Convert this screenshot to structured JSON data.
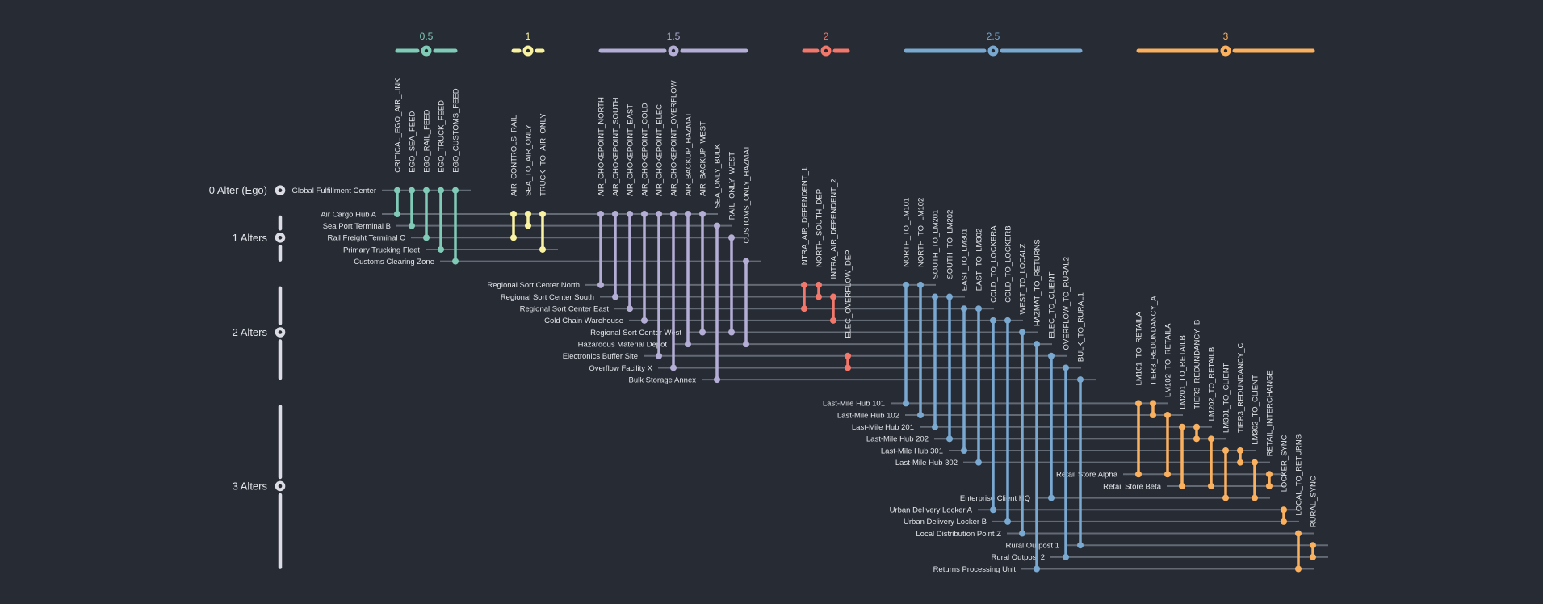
{
  "background": "#262b34",
  "row_line_color": "#646a74",
  "axis_color": "#dcdce4",
  "legend": {
    "items": [
      {
        "label": "0.5",
        "color": "#80cbb7"
      },
      {
        "label": "1",
        "color": "#f9f3a1"
      },
      {
        "label": "1.5",
        "color": "#b4aed6"
      },
      {
        "label": "2",
        "color": "#f3776a"
      },
      {
        "label": "2.5",
        "color": "#79a8d0"
      },
      {
        "label": "3",
        "color": "#fbb05e"
      }
    ]
  },
  "levels": [
    {
      "label": "0 Alter (Ego)",
      "nodes": [
        "Global Fulfillment Center"
      ]
    },
    {
      "label": "1 Alters",
      "nodes": [
        "Air Cargo Hub A",
        "Sea Port Terminal B",
        "Rail Freight Terminal C",
        "Primary Trucking Fleet",
        "Customs Clearing Zone"
      ]
    },
    {
      "label": "2 Alters",
      "nodes": [
        "Regional Sort Center North",
        "Regional Sort Center South",
        "Regional Sort Center East",
        "Cold Chain Warehouse",
        "Regional Sort Center West",
        "Hazardous Material Depot",
        "Electronics Buffer Site",
        "Overflow Facility X",
        "Bulk Storage Annex"
      ]
    },
    {
      "label": "3 Alters",
      "nodes": [
        "Last-Mile Hub 101",
        "Last-Mile Hub 102",
        "Last-Mile Hub 201",
        "Last-Mile Hub 202",
        "Last-Mile Hub 301",
        "Last-Mile Hub 302",
        "Retail Store Alpha",
        "Retail Store Beta",
        "Enterprise Client HQ",
        "Urban Delivery Locker A",
        "Urban Delivery Locker B",
        "Local Distribution Point Z",
        "Rural Outpost 1",
        "Rural Outpost 2",
        "Returns Processing Unit"
      ]
    }
  ],
  "edge_groups": [
    {
      "weight": "0.5",
      "edges": [
        {
          "label": "CRITICAL_EGO_AIR_LINK",
          "from": "Global Fulfillment Center",
          "to": "Air Cargo Hub A"
        },
        {
          "label": "EGO_SEA_FEED",
          "from": "Global Fulfillment Center",
          "to": "Sea Port Terminal B"
        },
        {
          "label": "EGO_RAIL_FEED",
          "from": "Global Fulfillment Center",
          "to": "Rail Freight Terminal C"
        },
        {
          "label": "EGO_TRUCK_FEED",
          "from": "Global Fulfillment Center",
          "to": "Primary Trucking Fleet"
        },
        {
          "label": "EGO_CUSTOMS_FEED",
          "from": "Global Fulfillment Center",
          "to": "Customs Clearing Zone"
        }
      ]
    },
    {
      "weight": "1",
      "edges": [
        {
          "label": "AIR_CONTROLS_RAIL",
          "from": "Air Cargo Hub A",
          "to": "Rail Freight Terminal C"
        },
        {
          "label": "SEA_TO_AIR_ONLY",
          "from": "Air Cargo Hub A",
          "to": "Sea Port Terminal B"
        },
        {
          "label": "TRUCK_TO_AIR_ONLY",
          "from": "Air Cargo Hub A",
          "to": "Primary Trucking Fleet"
        }
      ]
    },
    {
      "weight": "1.5",
      "edges": [
        {
          "label": "AIR_CHOKEPOINT_NORTH",
          "from": "Air Cargo Hub A",
          "to": "Regional Sort Center North"
        },
        {
          "label": "AIR_CHOKEPOINT_SOUTH",
          "from": "Air Cargo Hub A",
          "to": "Regional Sort Center South"
        },
        {
          "label": "AIR_CHOKEPOINT_EAST",
          "from": "Air Cargo Hub A",
          "to": "Regional Sort Center East"
        },
        {
          "label": "AIR_CHOKEPOINT_COLD",
          "from": "Air Cargo Hub A",
          "to": "Cold Chain Warehouse"
        },
        {
          "label": "AIR_CHOKEPOINT_ELEC",
          "from": "Air Cargo Hub A",
          "to": "Electronics Buffer Site"
        },
        {
          "label": "AIR_CHOKEPOINT_OVERFLOW",
          "from": "Air Cargo Hub A",
          "to": "Overflow Facility X"
        },
        {
          "label": "AIR_BACKUP_HAZMAT",
          "from": "Air Cargo Hub A",
          "to": "Hazardous Material Depot"
        },
        {
          "label": "AIR_BACKUP_WEST",
          "from": "Air Cargo Hub A",
          "to": "Regional Sort Center West"
        },
        {
          "label": "SEA_ONLY_BULK",
          "from": "Sea Port Terminal B",
          "to": "Bulk Storage Annex"
        },
        {
          "label": "RAIL_ONLY_WEST",
          "from": "Rail Freight Terminal C",
          "to": "Regional Sort Center West"
        },
        {
          "label": "CUSTOMS_ONLY_HAZMAT",
          "from": "Customs Clearing Zone",
          "to": "Hazardous Material Depot"
        }
      ]
    },
    {
      "weight": "2",
      "edges": [
        {
          "label": "INTRA_AIR_DEPENDENT_1",
          "from": "Regional Sort Center North",
          "to": "Regional Sort Center East"
        },
        {
          "label": "NORTH_SOUTH_DEP",
          "from": "Regional Sort Center North",
          "to": "Regional Sort Center South"
        },
        {
          "label": "INTRA_AIR_DEPENDENT_2",
          "from": "Regional Sort Center South",
          "to": "Cold Chain Warehouse"
        },
        {
          "label": "ELEC_OVERFLOW_DEP",
          "from": "Electronics Buffer Site",
          "to": "Overflow Facility X"
        }
      ]
    },
    {
      "weight": "2.5",
      "edges": [
        {
          "label": "NORTH_TO_LM101",
          "from": "Regional Sort Center North",
          "to": "Last-Mile Hub 101"
        },
        {
          "label": "NORTH_TO_LM102",
          "from": "Regional Sort Center North",
          "to": "Last-Mile Hub 102"
        },
        {
          "label": "SOUTH_TO_LM201",
          "from": "Regional Sort Center South",
          "to": "Last-Mile Hub 201"
        },
        {
          "label": "SOUTH_TO_LM202",
          "from": "Regional Sort Center South",
          "to": "Last-Mile Hub 202"
        },
        {
          "label": "EAST_TO_LM301",
          "from": "Regional Sort Center East",
          "to": "Last-Mile Hub 301"
        },
        {
          "label": "EAST_TO_LM302",
          "from": "Regional Sort Center East",
          "to": "Last-Mile Hub 302"
        },
        {
          "label": "COLD_TO_LOCKERA",
          "from": "Cold Chain Warehouse",
          "to": "Urban Delivery Locker A"
        },
        {
          "label": "COLD_TO_LOCKERB",
          "from": "Cold Chain Warehouse",
          "to": "Urban Delivery Locker B"
        },
        {
          "label": "WEST_TO_LOCALZ",
          "from": "Regional Sort Center West",
          "to": "Local Distribution Point Z"
        },
        {
          "label": "HAZMAT_TO_RETURNS",
          "from": "Hazardous Material Depot",
          "to": "Returns Processing Unit"
        },
        {
          "label": "ELEC_TO_CLIENT",
          "from": "Electronics Buffer Site",
          "to": "Enterprise Client HQ"
        },
        {
          "label": "OVERFLOW_TO_RURAL2",
          "from": "Overflow Facility X",
          "to": "Rural Outpost 2"
        },
        {
          "label": "BULK_TO_RURAL1",
          "from": "Bulk Storage Annex",
          "to": "Rural Outpost 1"
        }
      ]
    },
    {
      "weight": "3",
      "edges": [
        {
          "label": "LM101_TO_RETAILA",
          "from": "Last-Mile Hub 101",
          "to": "Retail Store Alpha"
        },
        {
          "label": "TIER3_REDUNDANCY_A",
          "from": "Last-Mile Hub 101",
          "to": "Last-Mile Hub 102"
        },
        {
          "label": "LM102_TO_RETAILA",
          "from": "Last-Mile Hub 102",
          "to": "Retail Store Alpha"
        },
        {
          "label": "LM201_TO_RETAILB",
          "from": "Last-Mile Hub 201",
          "to": "Retail Store Beta"
        },
        {
          "label": "TIER3_REDUNDANCY_B",
          "from": "Last-Mile Hub 201",
          "to": "Last-Mile Hub 202"
        },
        {
          "label": "LM202_TO_RETAILB",
          "from": "Last-Mile Hub 202",
          "to": "Retail Store Beta"
        },
        {
          "label": "LM301_TO_CLIENT",
          "from": "Last-Mile Hub 301",
          "to": "Enterprise Client HQ"
        },
        {
          "label": "TIER3_REDUNDANCY_C",
          "from": "Last-Mile Hub 301",
          "to": "Last-Mile Hub 302"
        },
        {
          "label": "LM302_TO_CLIENT",
          "from": "Last-Mile Hub 302",
          "to": "Enterprise Client HQ"
        },
        {
          "label": "RETAIL_INTERCHANGE",
          "from": "Retail Store Alpha",
          "to": "Retail Store Beta"
        },
        {
          "label": "LOCKER_SYNC",
          "from": "Urban Delivery Locker A",
          "to": "Urban Delivery Locker B"
        },
        {
          "label": "LOCAL_TO_RETURNS",
          "from": "Local Distribution Point Z",
          "to": "Returns Processing Unit"
        },
        {
          "label": "RURAL_SYNC",
          "from": "Rural Outpost 1",
          "to": "Rural Outpost 2"
        }
      ]
    }
  ]
}
